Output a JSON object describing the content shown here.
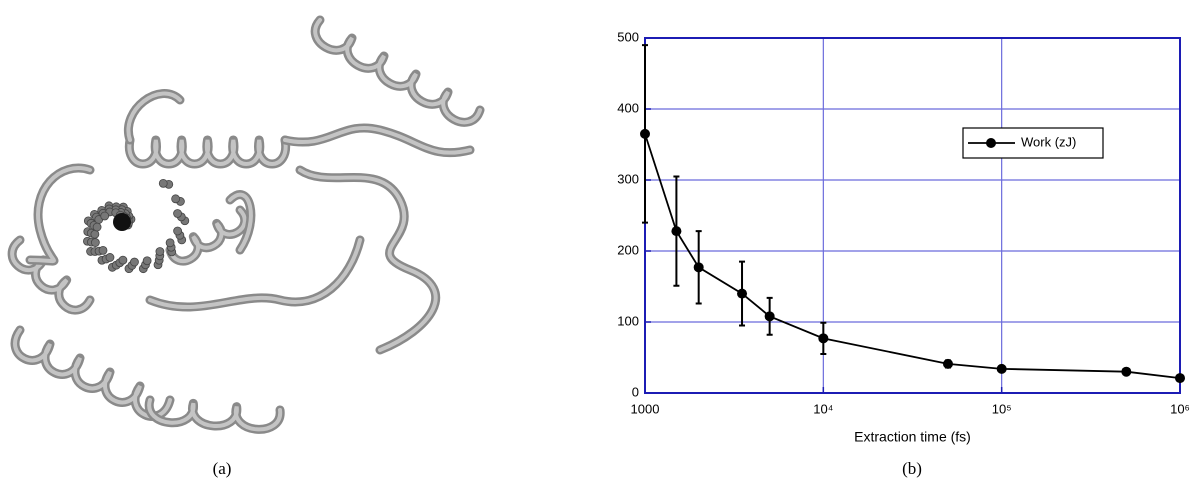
{
  "panel_a": {
    "caption": "(a)"
  },
  "chart_data": {
    "type": "line",
    "caption": "(b)",
    "xlabel": "Extraction time (fs)",
    "x": [
      1000,
      1500,
      2000,
      3500,
      5000,
      10000,
      50000,
      100000,
      500000,
      1000000
    ],
    "series": [
      {
        "name": "Work (zJ)",
        "color": "#000000",
        "values": [
          365,
          228,
          177,
          140,
          108,
          77,
          41,
          34,
          30,
          21
        ],
        "errors": [
          125,
          77,
          51,
          45,
          26,
          22,
          5,
          2,
          2,
          3
        ]
      }
    ],
    "xlim": [
      1000,
      1000000
    ],
    "ylim": [
      0,
      500
    ],
    "log_x": true,
    "grid": true,
    "grid_color": "#6b6bdc",
    "frame_color": "#1c1cb4",
    "xticks": [
      1000,
      {
        "value": 10000,
        "label": "10⁴"
      },
      {
        "value": 100000,
        "label": "10⁵"
      },
      {
        "value": 1000000,
        "label": "10⁶"
      }
    ],
    "yticks": [
      0,
      100,
      200,
      300,
      400,
      500
    ],
    "legend": "upper right"
  }
}
